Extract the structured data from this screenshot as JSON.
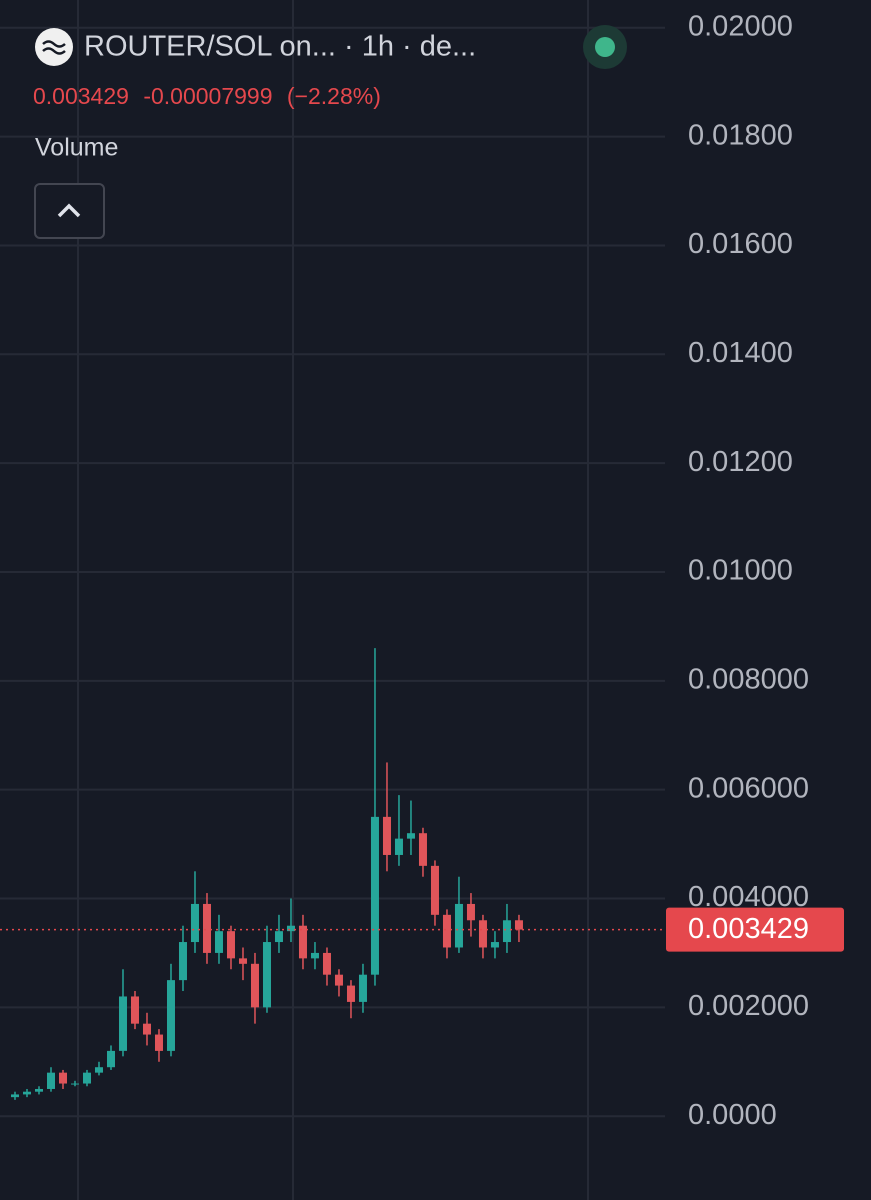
{
  "chart_data": {
    "type": "candlestick",
    "title": "ROUTER/SOL on... · 1h · de...",
    "indicator": "Volume",
    "last_price": 0.003429,
    "change": -7.999e-05,
    "change_percent_label": "(−2.28%)",
    "up_color": "#26a69a",
    "down_color": "#e0555a",
    "price_color": "#e5484d",
    "x": [
      0,
      1,
      2,
      3,
      4,
      5,
      6,
      7,
      8,
      9,
      10,
      11,
      12,
      13,
      14,
      15,
      16,
      17,
      18,
      19,
      20,
      21,
      22,
      23,
      24,
      25,
      26,
      27,
      28,
      29,
      30,
      31,
      32,
      33,
      34,
      35,
      36,
      37,
      38,
      39,
      40,
      41,
      42
    ],
    "open": [
      0.00035,
      0.0004,
      0.00045,
      0.0005,
      0.0008,
      0.0006,
      0.0006,
      0.0008,
      0.0009,
      0.0012,
      0.0022,
      0.0017,
      0.0015,
      0.0012,
      0.0025,
      0.0032,
      0.0039,
      0.003,
      0.0034,
      0.0029,
      0.0028,
      0.002,
      0.0032,
      0.0034,
      0.0035,
      0.0029,
      0.003,
      0.0026,
      0.0024,
      0.0021,
      0.0026,
      0.0055,
      0.0048,
      0.0051,
      0.0052,
      0.0046,
      0.0037,
      0.0031,
      0.0039,
      0.0036,
      0.0031,
      0.0032,
      0.0036
    ],
    "high": [
      0.00045,
      0.0005,
      0.00055,
      0.0009,
      0.00085,
      0.00065,
      0.00085,
      0.001,
      0.0013,
      0.0027,
      0.0023,
      0.0019,
      0.0016,
      0.0028,
      0.0035,
      0.0045,
      0.0041,
      0.0037,
      0.0035,
      0.0031,
      0.003,
      0.0035,
      0.0037,
      0.004,
      0.0037,
      0.0032,
      0.0031,
      0.0027,
      0.0025,
      0.0028,
      0.0086,
      0.0065,
      0.0059,
      0.0058,
      0.0053,
      0.0047,
      0.0038,
      0.0044,
      0.0041,
      0.0037,
      0.0034,
      0.0039,
      0.0037
    ],
    "low": [
      0.0003,
      0.00035,
      0.0004,
      0.00045,
      0.0005,
      0.00055,
      0.00055,
      0.00075,
      0.00085,
      0.0011,
      0.0016,
      0.0013,
      0.001,
      0.0011,
      0.0023,
      0.003,
      0.0028,
      0.0028,
      0.0027,
      0.0025,
      0.0017,
      0.0019,
      0.003,
      0.0032,
      0.0027,
      0.0027,
      0.0024,
      0.0022,
      0.0018,
      0.0019,
      0.0024,
      0.0045,
      0.0046,
      0.0048,
      0.0044,
      0.0035,
      0.0029,
      0.003,
      0.0033,
      0.0029,
      0.0029,
      0.003,
      0.0032
    ],
    "close": [
      0.0004,
      0.00045,
      0.0005,
      0.0008,
      0.0006,
      0.0006,
      0.0008,
      0.0009,
      0.0012,
      0.0022,
      0.0017,
      0.0015,
      0.0012,
      0.0025,
      0.0032,
      0.0039,
      0.003,
      0.0034,
      0.0029,
      0.0028,
      0.002,
      0.0032,
      0.0034,
      0.0035,
      0.0029,
      0.003,
      0.0026,
      0.0024,
      0.0021,
      0.0026,
      0.0055,
      0.0048,
      0.0051,
      0.0052,
      0.0046,
      0.0037,
      0.0031,
      0.0039,
      0.0036,
      0.0031,
      0.0032,
      0.0036,
      0.003429
    ],
    "xlim": [
      -1.25,
      54.17
    ],
    "ylim": [
      -0.00154,
      0.02051
    ],
    "yticks": [
      {
        "value": 0.02,
        "label": "0.02000"
      },
      {
        "value": 0.018,
        "label": "0.01800"
      },
      {
        "value": 0.016,
        "label": "0.01600"
      },
      {
        "value": 0.014,
        "label": "0.01400"
      },
      {
        "value": 0.012,
        "label": "0.01200"
      },
      {
        "value": 0.01,
        "label": "0.01000"
      },
      {
        "value": 0.008,
        "label": "0.008000"
      },
      {
        "value": 0.006,
        "label": "0.006000"
      },
      {
        "value": 0.004,
        "label": "0.004000"
      },
      {
        "value": 0.002,
        "label": "0.002000"
      },
      {
        "value": 0,
        "label": "0.0000"
      }
    ],
    "grid": true
  }
}
